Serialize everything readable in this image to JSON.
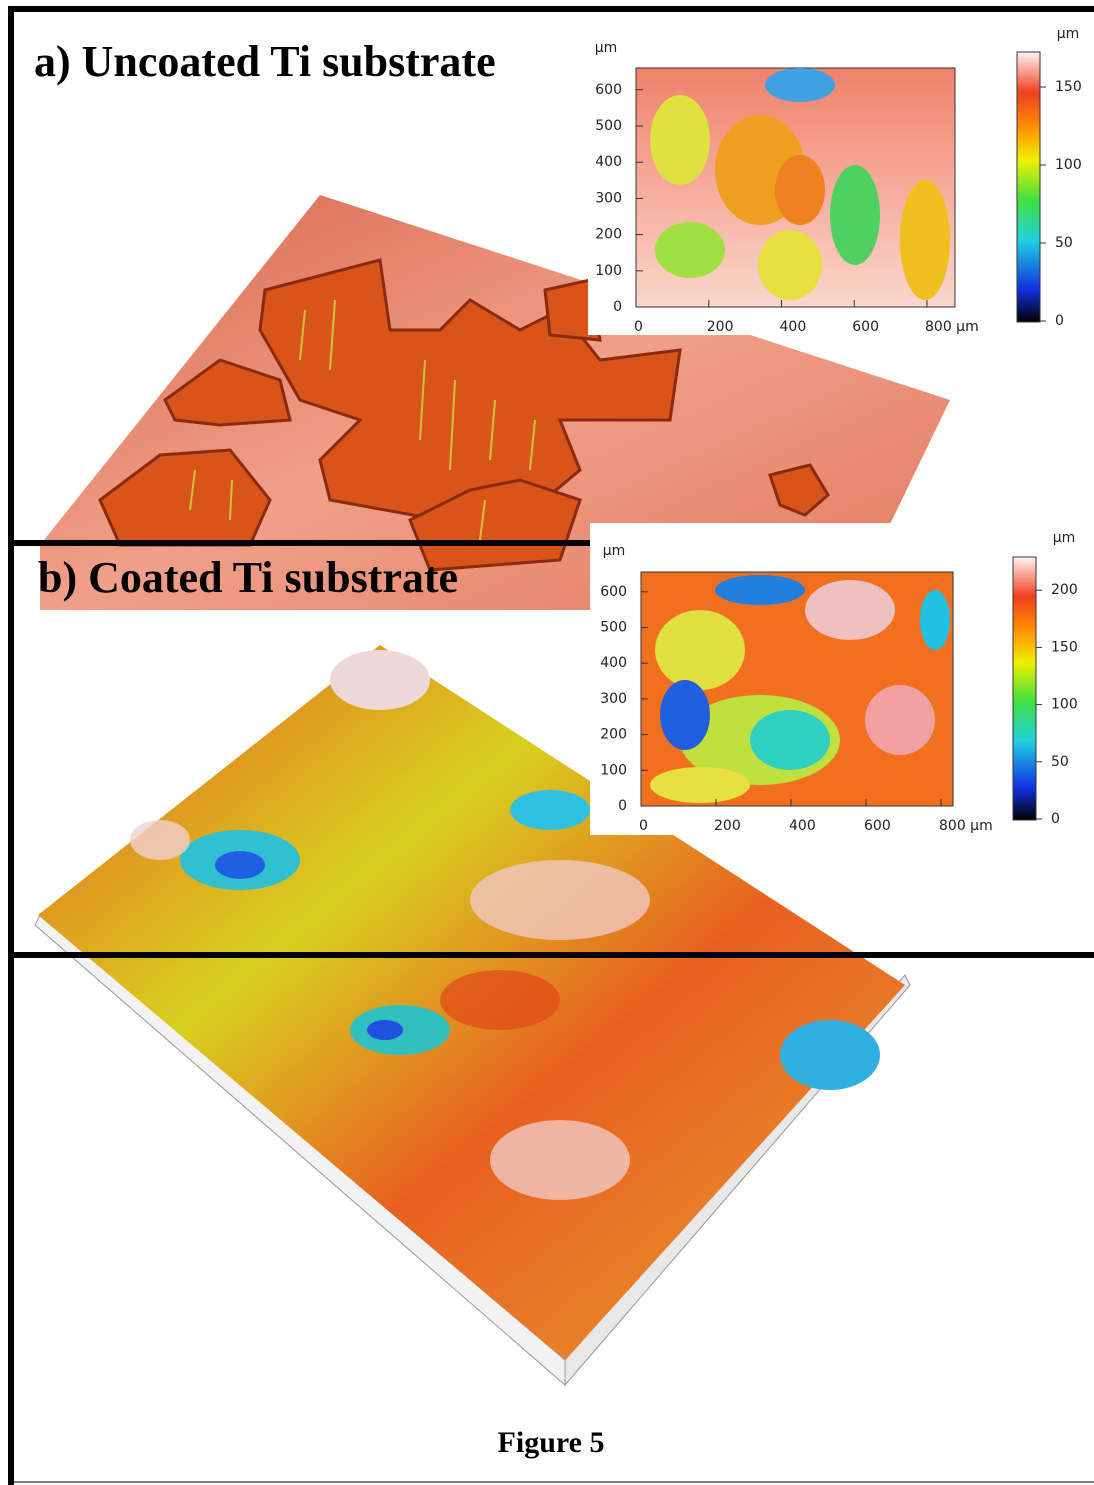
{
  "panels": [
    {
      "title": "a) Uncoated Ti substrate",
      "map": {
        "unit": "µm",
        "x_ticks": [
          "0",
          "200",
          "400",
          "600",
          "800 µm"
        ],
        "y_ticks": [
          "0",
          "100",
          "200",
          "300",
          "400",
          "500",
          "600"
        ]
      },
      "colorbar": {
        "unit": "µm",
        "ticks": [
          "0",
          "50",
          "100",
          "150"
        ]
      }
    },
    {
      "title": "b) Coated Ti substrate",
      "map": {
        "unit": "µm",
        "x_ticks": [
          "0",
          "200",
          "400",
          "600",
          "800 µm"
        ],
        "y_ticks": [
          "0",
          "100",
          "200",
          "300",
          "400",
          "500",
          "600"
        ]
      },
      "colorbar": {
        "unit": "µm",
        "ticks": [
          "0",
          "50",
          "100",
          "150",
          "200"
        ]
      }
    }
  ],
  "caption": "Figure 5"
}
